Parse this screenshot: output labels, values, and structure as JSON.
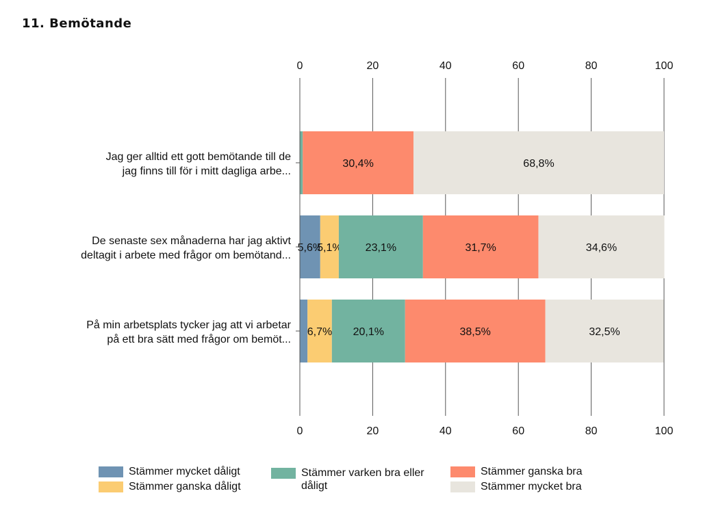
{
  "page": {
    "heading": "11. Bemötande"
  },
  "chart_data": {
    "type": "bar",
    "orientation": "horizontal",
    "stacked": true,
    "xlim": [
      0,
      100
    ],
    "xticks": [
      "0",
      "20",
      "40",
      "60",
      "80",
      "100"
    ],
    "tick_positions": "top and bottom",
    "grid": true,
    "legend_position": "bottom",
    "categories": [
      {
        "line1": "Jag ger alltid ett gott bemötande till de",
        "line2": "jag finns till för i mitt dagliga arbe..."
      },
      {
        "line1": "De senaste sex månaderna har jag aktivt",
        "line2": "deltagit i arbete med frågor om bemötand..."
      },
      {
        "line1": "På min arbetsplats tycker jag att vi arbetar",
        "line2": "på ett bra sätt med frågor om bemöt..."
      }
    ],
    "series": [
      {
        "name": "Stämmer mycket dåligt",
        "name_line2": "",
        "color": "#6f93b3",
        "values": [
          0.0,
          5.6,
          2.1
        ],
        "labels": [
          "",
          "5,6%",
          ""
        ]
      },
      {
        "name": "Stämmer ganska dåligt",
        "name_line2": "",
        "color": "#fbcc72",
        "values": [
          0.0,
          5.1,
          6.7
        ],
        "labels": [
          "",
          "5,1%",
          "6,7%"
        ]
      },
      {
        "name": "Stämmer varken bra eller",
        "name_line2": "dåligt",
        "color": "#72b3a0",
        "values": [
          0.8,
          23.1,
          20.1
        ],
        "labels": [
          "",
          "23,1%",
          "20,1%"
        ]
      },
      {
        "name": "Stämmer ganska bra",
        "name_line2": "",
        "color": "#fd8a6d",
        "values": [
          30.4,
          31.7,
          38.5
        ],
        "labels": [
          "30,4%",
          "31,7%",
          "38,5%"
        ]
      },
      {
        "name": "Stämmer mycket bra",
        "name_line2": "",
        "color": "#e8e5de",
        "values": [
          68.8,
          34.6,
          32.5
        ],
        "labels": [
          "68,8%",
          "34,6%",
          "32,5%"
        ]
      }
    ]
  }
}
